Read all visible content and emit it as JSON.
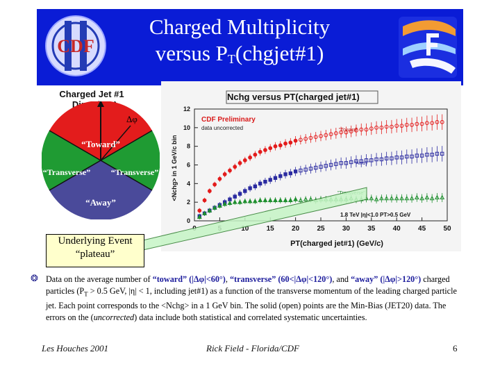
{
  "header": {
    "title_line1": "Charged Multiplicity",
    "title_line2_main": "versus P",
    "title_line2_sub": "T",
    "title_line2_rest": "(chgjet#1)",
    "left_logo_text": "CDF",
    "left_logo_numeral": "II",
    "colors": {
      "bar": "#0a1cd6",
      "logo_red": "#c62828",
      "logo_blue": "#233bb5"
    }
  },
  "diagram": {
    "title_line1": "Charged Jet #1",
    "title_line2": "Direction",
    "dphi_label": "Δφ",
    "regions": {
      "toward": "“Toward”",
      "transverse_left": "“Transverse”",
      "transverse_right": "“Transverse”",
      "away": "“Away”"
    },
    "colors": {
      "toward": "#e31c1c",
      "transverse": "#1f9b33",
      "away": "#4a4a9a"
    }
  },
  "callout": {
    "line1": "Underlying Event",
    "line2": "“plateau”"
  },
  "chart_data": {
    "type": "scatter",
    "title": "Nchg versus PT(charged jet#1)",
    "xlabel": "PT(charged jet#1)  (GeV/c)",
    "ylabel": "<Nchg> in 1 GeV/c bin",
    "xlim": [
      0,
      50
    ],
    "ylim": [
      0,
      12
    ],
    "xticks": [
      "0",
      "5",
      "10",
      "15",
      "20",
      "25",
      "30",
      "35",
      "40",
      "45",
      "50"
    ],
    "yticks": [
      "0",
      "2",
      "4",
      "6",
      "8",
      "10",
      "12"
    ],
    "annotations": {
      "preliminary": "CDF Preliminary",
      "uncorrected": "data uncorrected",
      "cuts": "1.8 TeV |η|<1.0 PT>0.5 GeV",
      "toward": "\"Toward\"",
      "away": "\"Away\"",
      "transverse": "\"Transverse\""
    },
    "grid": false,
    "series": [
      {
        "name": "Toward",
        "color": "#e31c1c",
        "x": [
          1,
          2,
          3,
          4,
          5,
          6,
          7,
          8,
          9,
          10,
          11,
          12,
          13,
          14,
          15,
          16,
          17,
          18,
          19,
          20,
          21,
          22,
          23,
          24,
          25,
          26,
          27,
          28,
          29,
          30,
          31,
          32,
          33,
          34,
          35,
          36,
          37,
          38,
          39,
          40,
          41,
          42,
          43,
          44,
          45,
          46,
          47,
          48,
          49
        ],
        "y": [
          1.1,
          2.2,
          3.2,
          3.9,
          4.5,
          5.0,
          5.4,
          5.8,
          6.2,
          6.5,
          6.8,
          7.1,
          7.4,
          7.6,
          7.8,
          8.0,
          8.1,
          8.3,
          8.4,
          8.6,
          8.7,
          8.8,
          8.9,
          9.0,
          9.1,
          9.2,
          9.3,
          9.4,
          9.5,
          9.5,
          9.6,
          9.7,
          9.8,
          9.8,
          9.9,
          10.0,
          10.0,
          10.1,
          10.1,
          10.2,
          10.2,
          10.3,
          10.3,
          10.4,
          10.4,
          10.5,
          10.5,
          10.6,
          10.6
        ]
      },
      {
        "name": "Away",
        "color": "#2a2aa0",
        "x": [
          1,
          2,
          3,
          4,
          5,
          6,
          7,
          8,
          9,
          10,
          11,
          12,
          13,
          14,
          15,
          16,
          17,
          18,
          19,
          20,
          21,
          22,
          23,
          24,
          25,
          26,
          27,
          28,
          29,
          30,
          31,
          32,
          33,
          34,
          35,
          36,
          37,
          38,
          39,
          40,
          41,
          42,
          43,
          44,
          45,
          46,
          47,
          48,
          49
        ],
        "y": [
          0.5,
          0.8,
          1.1,
          1.4,
          1.7,
          2.0,
          2.3,
          2.6,
          2.9,
          3.2,
          3.5,
          3.7,
          4.0,
          4.2,
          4.4,
          4.6,
          4.8,
          5.0,
          5.1,
          5.3,
          5.4,
          5.5,
          5.6,
          5.7,
          5.8,
          5.9,
          6.0,
          6.1,
          6.2,
          6.2,
          6.3,
          6.4,
          6.4,
          6.5,
          6.5,
          6.6,
          6.6,
          6.7,
          6.7,
          6.8,
          6.8,
          6.9,
          6.9,
          7.0,
          7.0,
          7.1,
          7.1,
          7.2,
          7.2
        ]
      },
      {
        "name": "Transverse",
        "color": "#1f8f2f",
        "x": [
          1,
          2,
          3,
          4,
          5,
          6,
          7,
          8,
          9,
          10,
          11,
          12,
          13,
          14,
          15,
          16,
          17,
          18,
          19,
          20,
          21,
          22,
          23,
          24,
          25,
          26,
          27,
          28,
          29,
          30,
          31,
          32,
          33,
          34,
          35,
          36,
          37,
          38,
          39,
          40,
          41,
          42,
          43,
          44,
          45,
          46,
          47,
          48,
          49
        ],
        "y": [
          0.4,
          0.8,
          1.1,
          1.4,
          1.6,
          1.8,
          1.9,
          2.0,
          2.0,
          2.1,
          2.1,
          2.1,
          2.2,
          2.2,
          2.2,
          2.2,
          2.2,
          2.2,
          2.2,
          2.3,
          2.2,
          2.3,
          2.3,
          2.2,
          2.3,
          2.3,
          2.3,
          2.3,
          2.3,
          2.3,
          2.4,
          2.3,
          2.3,
          2.4,
          2.4,
          2.3,
          2.4,
          2.4,
          2.4,
          2.4,
          2.4,
          2.4,
          2.4,
          2.5,
          2.4,
          2.5,
          2.4,
          2.5,
          2.5
        ]
      }
    ]
  },
  "description": {
    "p1": "Data on the average number of ",
    "toward": "“toward” (|Δφ|<60°)",
    "p2": ", ",
    "transverse": "“transverse” (60<|Δφ|<120°)",
    "p3": ", and ",
    "away": "“away” (|Δφ|>120°)",
    "p4": " charged particles (P",
    "p4_sub": "T",
    "p5": " > 0.5 GeV, |η| < 1, including jet#1)  as a function of the transverse momentum of the leading charged particle jet. Each point corresponds to the <Nchg> in a 1 GeV bin. The solid (open) points are the Min-Bias (JET20) data. The errors on the (",
    "uncorrected": "uncorrected",
    "p6": ") data include both statistical and correlated systematic uncertainties."
  },
  "footer": {
    "left": "Les Houches 2001",
    "center": "Rick Field - Florida/CDF",
    "page": "6"
  }
}
